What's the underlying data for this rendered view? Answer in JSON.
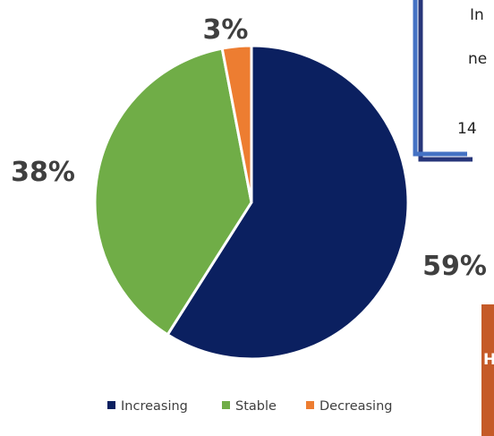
{
  "chart_data": {
    "type": "pie",
    "title": "",
    "categories": [
      "Increasing",
      "Stable",
      "Decreasing"
    ],
    "values": [
      59,
      38,
      3
    ],
    "value_labels": [
      "59%",
      "38%",
      "3%"
    ],
    "colors": [
      "#0b2060",
      "#70ad47",
      "#ed7d31"
    ],
    "start_angle_deg": 0,
    "direction": "clockwise",
    "legend": {
      "placement": "bottom",
      "entries": [
        "Increasing",
        "Stable",
        "Decreasing"
      ]
    }
  },
  "callout": {
    "lines": [
      "In",
      "ne",
      "14"
    ],
    "border_color": "#4472c4"
  },
  "orange_box": {
    "text": "H",
    "color": "#c55a28"
  }
}
